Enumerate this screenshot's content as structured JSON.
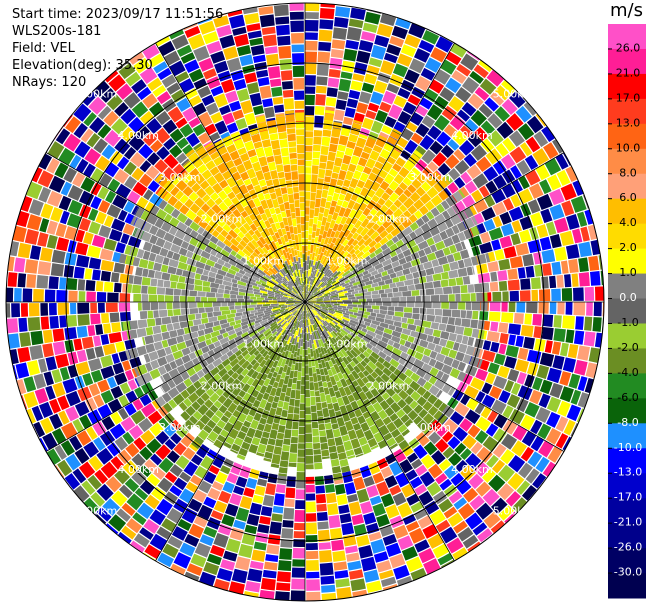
{
  "info": {
    "start_time": "Start time: 2023/09/17 11:51:56",
    "instrument": "WLS200s-181",
    "field": "Field: VEL",
    "elevation": "Elevation(deg): 35.30",
    "nrays": "NRays: 120"
  },
  "colorbar": {
    "unit": "m/s",
    "ticks": [
      "26.0",
      "21.0",
      "17.0",
      "13.0",
      "10.0",
      "8.0",
      "6.0",
      "4.0",
      "2.0",
      "1.0",
      "0.0",
      "-1.0",
      "-2.0",
      "-4.0",
      "-6.0",
      "-8.0",
      "-10.0",
      "-13.0",
      "-17.0",
      "-21.0",
      "-26.0",
      "-30.0"
    ],
    "colors": [
      "#ff50c8",
      "#ff1e96",
      "#ff0000",
      "#ff3c1e",
      "#ff6414",
      "#ff8c46",
      "#ffa078",
      "#ffbe00",
      "#ffdc00",
      "#ffff00",
      "#808080",
      "#646464",
      "#9acd32",
      "#6b8e23",
      "#228b22",
      "#0a640a",
      "#1e90ff",
      "#0000ff",
      "#0000cd",
      "#0000a0",
      "#00008b",
      "#000064",
      "#000050"
    ]
  },
  "chart_data": {
    "type": "heatmap",
    "title": "",
    "field": "VEL",
    "elevation_deg": 35.3,
    "n_rays": 120,
    "range_rings": [
      "1.00km",
      "2.00km",
      "3.00km",
      "4.00km",
      "5.00km"
    ],
    "ring_label_ne": [
      "1.00km",
      "2.00km",
      "3.00km",
      "4.00km",
      "5.00km"
    ],
    "ring_label_nw": [
      "1.00km",
      "2.00km",
      "3.00km",
      "4.00km",
      "5.00km"
    ],
    "ring_label_se": [
      "1.00km",
      "2.00km",
      "3.00km",
      "4.00km",
      "5.00km"
    ],
    "ring_label_sw": [
      "1.00km",
      "2.00km",
      "3.00km",
      "4.00km",
      "5.00km"
    ],
    "colorbar_unit": "m/s",
    "colorbar_range": [
      -30.0,
      26.0
    ],
    "description_regions": {
      "north_sector_inner": "positive 2-6 m/s (yellow/orange)",
      "south_sector_inner": "negative -2 to -4 m/s (olive green)",
      "east_west_band": "near 0 m/s (gray)",
      "outer_range": "noisy, full color range"
    }
  }
}
